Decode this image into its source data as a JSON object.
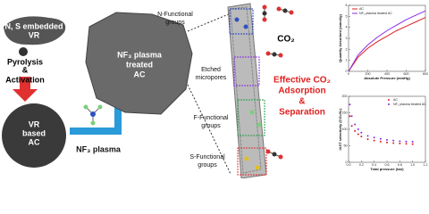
{
  "labels": {
    "precursor": [
      "N, S embedded",
      "VR"
    ],
    "process": [
      "Pyrolysis",
      "&",
      "Activation"
    ],
    "base": [
      "VR",
      "based",
      "AC"
    ],
    "plasma": "NF₃ plasma",
    "treated": [
      "NF₃ plasma",
      "treated",
      "AC"
    ],
    "n_groups": [
      "N-Functional",
      "groups"
    ],
    "micropores": [
      "Etched",
      "micropores"
    ],
    "f_groups": [
      "F-Functional",
      "groups"
    ],
    "s_groups": [
      "S-Functional",
      "groups"
    ],
    "co2": "CO₂",
    "effect": [
      "Effective CO₂",
      "Adsorption",
      "&",
      "Separation"
    ]
  },
  "chart_data": [
    {
      "type": "line",
      "xlabel": "Absolute Pressure (mmHg)",
      "ylabel": "Quantity Adsorbed (mmol/g)",
      "x": [
        0,
        100,
        200,
        300,
        400,
        500,
        600,
        700,
        800
      ],
      "series": [
        {
          "name": "AC",
          "color": "#e02020",
          "values": [
            0,
            1.3,
            2.1,
            2.7,
            3.2,
            3.7,
            4.1,
            4.5,
            4.9
          ]
        },
        {
          "name": "NF₃ plasma treated AC",
          "color": "#8a2be2",
          "values": [
            0,
            1.5,
            2.4,
            3.1,
            3.7,
            4.2,
            4.7,
            5.1,
            5.5
          ]
        }
      ],
      "xlim": [
        0,
        800
      ],
      "xticks": [
        0,
        200,
        400,
        600,
        800
      ],
      "ylim": [
        0,
        6
      ],
      "yticks": [
        0,
        1,
        2,
        3,
        4,
        5,
        6
      ],
      "legend": "upper left"
    },
    {
      "type": "scatter",
      "xlabel": "Total pressure (bar)",
      "ylabel": "IAST selectivity (CO₂/N₂)",
      "x": [
        0.02,
        0.05,
        0.1,
        0.15,
        0.2,
        0.3,
        0.4,
        0.5,
        0.6,
        0.7,
        0.8,
        0.9,
        1.0
      ],
      "series": [
        {
          "name": "AC",
          "color": "#e02020",
          "values": [
            140,
            110,
            95,
            85,
            78,
            70,
            66,
            63,
            60,
            58,
            57,
            56,
            55
          ]
        },
        {
          "name": "NF₃ plasma treated AC",
          "color": "#8a2be2",
          "values": [
            175,
            140,
            115,
            100,
            90,
            80,
            75,
            71,
            68,
            66,
            64,
            63,
            62
          ]
        }
      ],
      "xlim": [
        0,
        1.2
      ],
      "xticks": [
        {
          "value": 0,
          "label": "0.0"
        },
        {
          "value": 0.2,
          "label": "0.2"
        },
        {
          "value": 0.4,
          "label": "0.4"
        },
        {
          "value": 0.6,
          "label": "0.6"
        },
        {
          "value": 0.8,
          "label": "0.8"
        },
        {
          "value": 1,
          "label": "1.0"
        },
        {
          "value": 1.2,
          "label": "1.2"
        }
      ],
      "ylim": [
        0,
        200
      ],
      "yticks": [
        0,
        50,
        100,
        150,
        200
      ],
      "legend": "upper right"
    }
  ]
}
